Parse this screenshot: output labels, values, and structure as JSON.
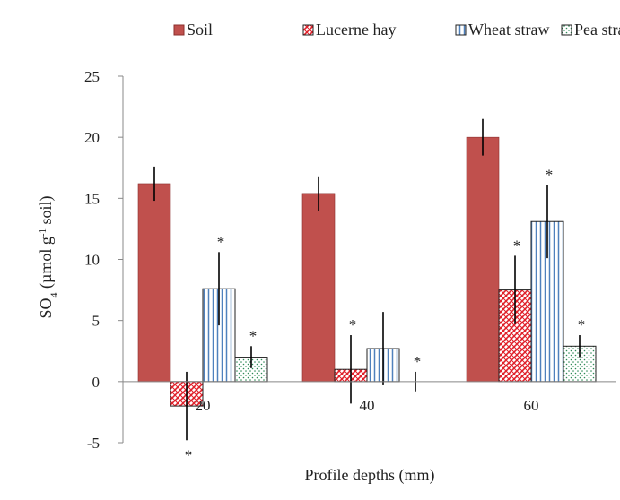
{
  "chart_data": {
    "type": "bar",
    "title": "",
    "xlabel": "Profile depths (mm)",
    "ylabel": {
      "main": "SO",
      "sub": "4",
      "unit": " (µmol g",
      "sup": "-1",
      "tail": " soil)"
    },
    "categories": [
      "20",
      "40",
      "60"
    ],
    "ylim": [
      -5,
      25
    ],
    "yticks": [
      -5,
      0,
      5,
      10,
      15,
      20,
      25
    ],
    "legend_position": "top",
    "grid": false,
    "series": [
      {
        "name": "Soil",
        "pattern": "solid",
        "color": "#c0504d",
        "values": [
          16.2,
          15.4,
          20.0
        ],
        "errors": [
          1.4,
          1.4,
          1.5
        ],
        "significance": [
          "",
          "",
          ""
        ]
      },
      {
        "name": "Lucerne hay",
        "pattern": "crosshatch",
        "color": "#e0202a",
        "values": [
          -2.0,
          1.0,
          7.5
        ],
        "errors": [
          2.8,
          2.8,
          2.8
        ],
        "significance": [
          "*",
          "*",
          "*"
        ]
      },
      {
        "name": "Wheat straw",
        "pattern": "vertical-lines",
        "color": "#4f81bd",
        "values": [
          7.6,
          2.7,
          13.1
        ],
        "errors": [
          3.0,
          3.0,
          3.0
        ],
        "significance": [
          "*",
          "",
          "*"
        ]
      },
      {
        "name": "Pea straw",
        "pattern": "dots",
        "color": "#2e8b57",
        "values": [
          2.0,
          0.0,
          2.9
        ],
        "errors": [
          0.9,
          0.8,
          0.9
        ],
        "significance": [
          "*",
          "*",
          "*"
        ]
      }
    ]
  }
}
